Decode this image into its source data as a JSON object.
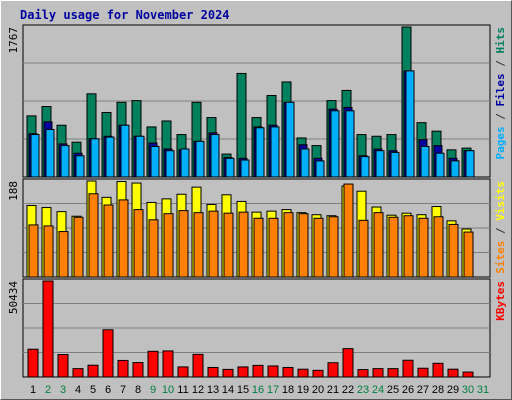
{
  "chart_data": {
    "type": "bar",
    "title": "Daily usage for November 2024",
    "days": [
      "1",
      "2",
      "3",
      "4",
      "5",
      "6",
      "7",
      "8",
      "9",
      "10",
      "11",
      "12",
      "13",
      "14",
      "15",
      "16",
      "17",
      "18",
      "19",
      "20",
      "21",
      "22",
      "23",
      "24",
      "25",
      "26",
      "27",
      "28",
      "29",
      "30",
      "31"
    ],
    "weekend_days": [
      "2",
      "3",
      "9",
      "10",
      "16",
      "17",
      "23",
      "24",
      "30",
      "31"
    ],
    "panels": [
      {
        "id": "hits-files-pages",
        "ymax_label": "1767",
        "ylim": [
          0,
          1767
        ],
        "right_label_parts": [
          {
            "text": "Pages",
            "color": "#00b0ff"
          },
          {
            "text": " / ",
            "color": "#333333"
          },
          {
            "text": "Files",
            "color": "#0000a0"
          },
          {
            "text": " / ",
            "color": "#333333"
          },
          {
            "text": "Hits",
            "color": "#00805c"
          }
        ],
        "series": [
          {
            "name": "Hits",
            "color": "#00805c",
            "values": [
              720,
              830,
              610,
              410,
              980,
              760,
              880,
              900,
              590,
              660,
              500,
              880,
              700,
              270,
              1220,
              700,
              960,
              1120,
              460,
              370,
              900,
              1020,
              500,
              480,
              500,
              1767,
              640,
              540,
              320,
              340,
              null
            ]
          },
          {
            "name": "Files",
            "color": "#0000a0",
            "values": [
              510,
              650,
              390,
              280,
              450,
              480,
              610,
              480,
              400,
              330,
              320,
              420,
              520,
              230,
              220,
              590,
              610,
              880,
              380,
              220,
              800,
              820,
              250,
              330,
              310,
              1250,
              440,
              370,
              220,
              310,
              null
            ]
          },
          {
            "name": "Pages",
            "color": "#00b0ff",
            "values": [
              500,
              560,
              370,
              250,
              450,
              470,
              610,
              480,
              360,
              310,
              330,
              420,
              500,
              220,
              200,
              580,
              590,
              880,
              330,
              190,
              780,
              780,
              240,
              310,
              290,
              1250,
              360,
              280,
              190,
              310,
              null
            ]
          }
        ]
      },
      {
        "id": "visits-sites",
        "ymax_label": "188",
        "ylim": [
          0,
          188
        ],
        "right_label_parts": [
          {
            "text": "Sites",
            "color": "#ff8000"
          },
          {
            "text": " / ",
            "color": "#333333"
          },
          {
            "text": "Visits",
            "color": "#ffff00"
          }
        ],
        "series": [
          {
            "name": "Visits",
            "color": "#ffff00",
            "values": [
              140,
              136,
              128,
              119,
              188,
              156,
              187,
              184,
              146,
              153,
              162,
              176,
              142,
              161,
              148,
              127,
              129,
              132,
              126,
              122,
              120,
              178,
              168,
              137,
              121,
              125,
              122,
              138,
              110,
              94,
              null
            ]
          },
          {
            "name": "Sites",
            "color": "#ff8000",
            "values": [
              102,
              100,
              89,
              117,
              163,
              141,
              151,
              132,
              112,
              124,
              130,
              126,
              129,
              125,
              127,
              115,
              115,
              126,
              124,
              115,
              118,
              182,
              111,
              126,
              117,
              120,
              115,
              118,
              103,
              88,
              null
            ]
          }
        ]
      },
      {
        "id": "kbytes",
        "ymax_label": "50434",
        "ylim": [
          0,
          50434
        ],
        "right_label_parts": [
          {
            "text": "KBytes",
            "color": "#ff0000"
          }
        ],
        "series": [
          {
            "name": "KBytes",
            "color": "#ff0000",
            "values": [
              14600,
              50434,
              11800,
              4400,
              6200,
              24800,
              8700,
              7600,
              13500,
              13700,
              5300,
              11900,
              5000,
              4000,
              5300,
              6100,
              5800,
              5000,
              4100,
              3500,
              7500,
              14900,
              3900,
              4400,
              4400,
              8800,
              4600,
              7200,
              4100,
              2600,
              null
            ]
          }
        ]
      }
    ]
  }
}
